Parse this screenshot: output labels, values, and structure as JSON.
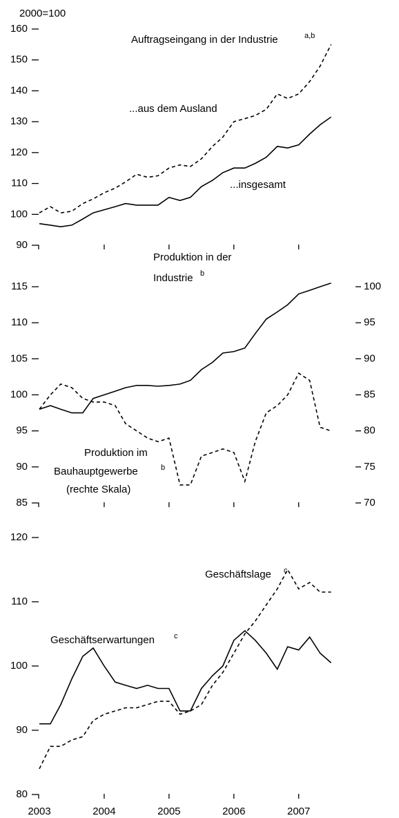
{
  "chart_data": [
    {
      "type": "line",
      "unit_note": "2000=100",
      "title": "Auftragseingang in der Industrie",
      "title_sup": "a,b",
      "x": [
        2003,
        2003.17,
        2003.33,
        2003.5,
        2003.67,
        2003.83,
        2004,
        2004.17,
        2004.33,
        2004.5,
        2004.67,
        2004.83,
        2005,
        2005.17,
        2005.33,
        2005.5,
        2005.67,
        2005.83,
        2006,
        2006.17,
        2006.33,
        2006.5,
        2006.67,
        2006.83,
        2007,
        2007.17,
        2007.33,
        2007.5
      ],
      "xlim": [
        2003,
        2007.77
      ],
      "xticks": [
        2003,
        2004,
        2005,
        2006,
        2007
      ],
      "x_tick_labels": false,
      "ylim": [
        90,
        160
      ],
      "yticks": [
        90,
        100,
        110,
        120,
        130,
        140,
        150,
        160
      ],
      "series": [
        {
          "name": "...aus dem Ausland",
          "color": "#000000",
          "dash": true,
          "values": [
            100.5,
            102.5,
            100.5,
            101,
            103.5,
            105,
            107,
            108.5,
            110.5,
            113,
            112,
            112.5,
            115,
            116,
            115.5,
            118,
            122,
            125,
            130,
            131,
            132,
            134,
            139,
            137.5,
            139,
            143,
            148,
            155
          ]
        },
        {
          "name": "...insgesamt",
          "color": "#000000",
          "dash": false,
          "values": [
            97,
            96.5,
            96,
            96.5,
            98.5,
            100.5,
            101.5,
            102.5,
            103.5,
            103,
            103,
            103,
            105.5,
            104.5,
            105.5,
            109,
            111,
            113.5,
            115,
            115,
            116.5,
            118.5,
            122,
            121.5,
            122.5,
            126,
            129,
            131.5
          ]
        }
      ]
    },
    {
      "type": "line",
      "x": [
        2003,
        2003.17,
        2003.33,
        2003.5,
        2003.67,
        2003.83,
        2004,
        2004.17,
        2004.33,
        2004.5,
        2004.67,
        2004.83,
        2005,
        2005.17,
        2005.33,
        2005.5,
        2005.67,
        2005.83,
        2006,
        2006.17,
        2006.33,
        2006.5,
        2006.67,
        2006.83,
        2007,
        2007.17,
        2007.33,
        2007.5
      ],
      "xlim": [
        2003,
        2007.77
      ],
      "xticks": [
        2003,
        2004,
        2005,
        2006,
        2007
      ],
      "x_tick_labels": false,
      "ylim": [
        85,
        115
      ],
      "yticks": [
        85,
        90,
        95,
        100,
        105,
        110,
        115
      ],
      "y2lim": [
        70,
        100
      ],
      "y2ticks": [
        70,
        75,
        80,
        85,
        90,
        95,
        100
      ],
      "series": [
        {
          "name": [
            "Produktion in der",
            "Industrie"
          ],
          "sup": "b",
          "color": "#000000",
          "dash": false,
          "values": [
            98,
            98.5,
            98,
            97.5,
            97.5,
            99.5,
            100,
            100.5,
            101,
            101.3,
            101.3,
            101.2,
            101.3,
            101.5,
            102,
            103.5,
            104.5,
            105.8,
            106,
            106.5,
            108.5,
            110.5,
            111.5,
            112.5,
            114,
            114.5,
            115,
            115.5
          ]
        },
        {
          "name": [
            "Produktion im",
            "Bauhauptgewerbe",
            "(rechte Skala)"
          ],
          "sup": "b",
          "color": "#000000",
          "dash": true,
          "axis": "y2",
          "values": [
            83,
            85,
            86.5,
            86,
            84.5,
            84,
            84,
            83.5,
            81,
            80,
            79,
            78.5,
            79,
            72.5,
            72.5,
            76.5,
            77,
            77.5,
            77,
            73,
            78.5,
            82.5,
            83.5,
            85,
            88,
            87,
            80.5,
            80
          ]
        }
      ]
    },
    {
      "type": "line",
      "x": [
        2003,
        2003.17,
        2003.33,
        2003.5,
        2003.67,
        2003.83,
        2004,
        2004.17,
        2004.33,
        2004.5,
        2004.67,
        2004.83,
        2005,
        2005.17,
        2005.33,
        2005.5,
        2005.67,
        2005.83,
        2006,
        2006.17,
        2006.33,
        2006.5,
        2006.67,
        2006.83,
        2007,
        2007.17,
        2007.33,
        2007.5
      ],
      "xlim": [
        2003,
        2007.77
      ],
      "xticks": [
        2003,
        2004,
        2005,
        2006,
        2007
      ],
      "x_tick_labels": true,
      "ylim": [
        80,
        120
      ],
      "yticks": [
        80,
        90,
        100,
        110,
        120
      ],
      "series": [
        {
          "name": "Geschäftslage",
          "sup": "c",
          "color": "#000000",
          "dash": true,
          "values": [
            84,
            87.5,
            87.5,
            88.5,
            89,
            91.5,
            92.5,
            93,
            93.5,
            93.5,
            94,
            94.5,
            94.5,
            92.5,
            93,
            94,
            97,
            99,
            102,
            105,
            107,
            109.5,
            112,
            115,
            112,
            113,
            111.5,
            111.5
          ]
        },
        {
          "name": "Geschäftserwartungen",
          "sup": "c",
          "color": "#000000",
          "dash": false,
          "values": [
            91,
            91,
            94,
            98,
            101.5,
            102.8,
            100,
            97.5,
            97,
            96.5,
            97,
            96.5,
            96.5,
            93,
            93,
            96.5,
            98.5,
            100,
            104,
            105.5,
            104,
            102,
            99.5,
            103,
            102.5,
            104.5,
            102,
            100.5
          ]
        }
      ]
    }
  ]
}
